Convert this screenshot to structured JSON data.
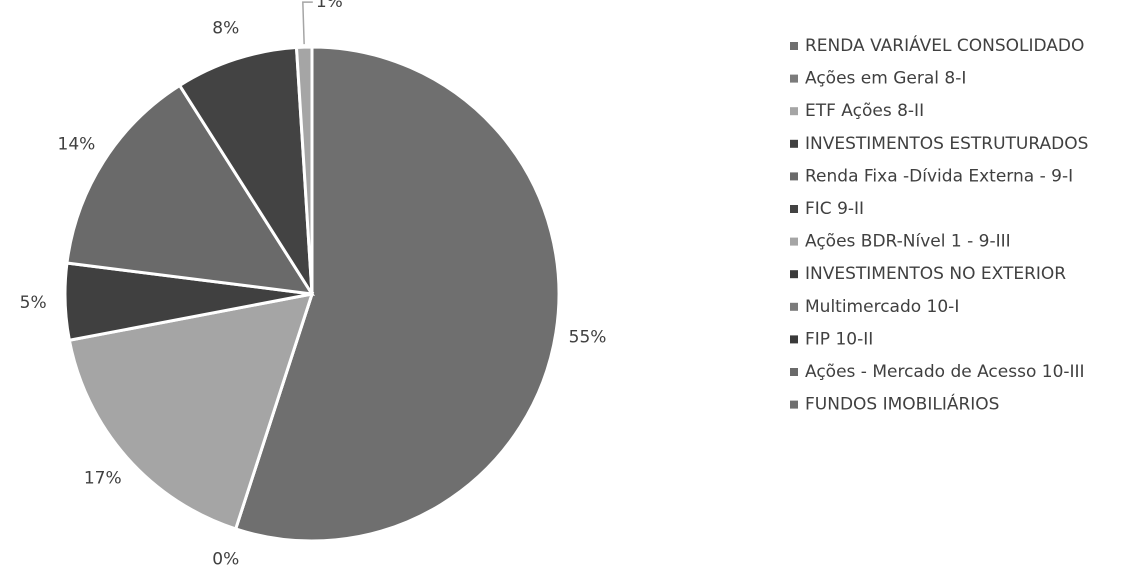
{
  "chart_data": {
    "type": "pie",
    "categories": [
      "RENDA VARIÁVEL CONSOLIDADO",
      "Ações em Geral 8-I",
      "ETF Ações 8-II",
      "INVESTIMENTOS ESTRUTURADOS",
      "Renda Fixa -Dívida Externa - 9-I",
      "FIC  9-II",
      "Ações BDR-Nível 1 - 9-III",
      "INVESTIMENTOS NO EXTERIOR",
      "Multimercado 10-I",
      "FIP 10-II",
      "Ações - Mercado de Acesso  10-III",
      "FUNDOS IMOBILIÁRIOS"
    ],
    "values": [
      55,
      0,
      17,
      5,
      14,
      8,
      1,
      null,
      null,
      null,
      null,
      null
    ],
    "colors": [
      "#6f6f6f",
      "#7b7b7b",
      "#a5a5a5",
      "#404040",
      "#6a6a6a",
      "#434343",
      "#a5a5a5",
      "#3a3a3a",
      "#7b7b7b",
      "#3a3a3a",
      "#6a6a6a",
      "#6f6f6f"
    ],
    "label_suffix": "%"
  }
}
